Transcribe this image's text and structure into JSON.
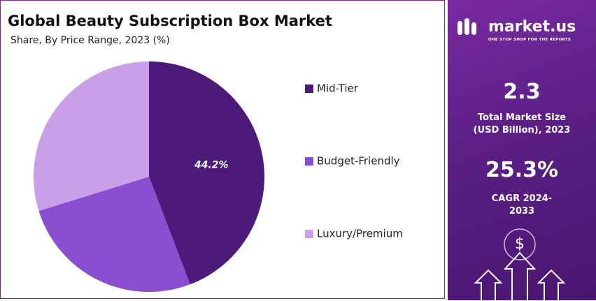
{
  "chart_data": {
    "type": "pie",
    "title": "Global Beauty Subscription Box Market",
    "subtitle": "Share, By Price Range, 2023 (%)",
    "categories": [
      "Mid-Tier",
      "Budget-Friendly",
      "Luxury/Premium"
    ],
    "values": [
      44.2,
      26.0,
      29.8
    ],
    "value_labels": [
      "44.2%",
      null,
      null
    ],
    "colors": [
      "#4b1a7a",
      "#8a4fd1",
      "#c9a0e8"
    ],
    "legend": "right"
  },
  "sidebar": {
    "brand": "market.us",
    "tagline": "ONE STOP SHOP FOR THE REPORTS",
    "market_size": "2.3",
    "market_size_label": "Total Market Size (USD Billion), 2023",
    "cagr": "25.3%",
    "cagr_label": "CAGR 2024-2033"
  }
}
